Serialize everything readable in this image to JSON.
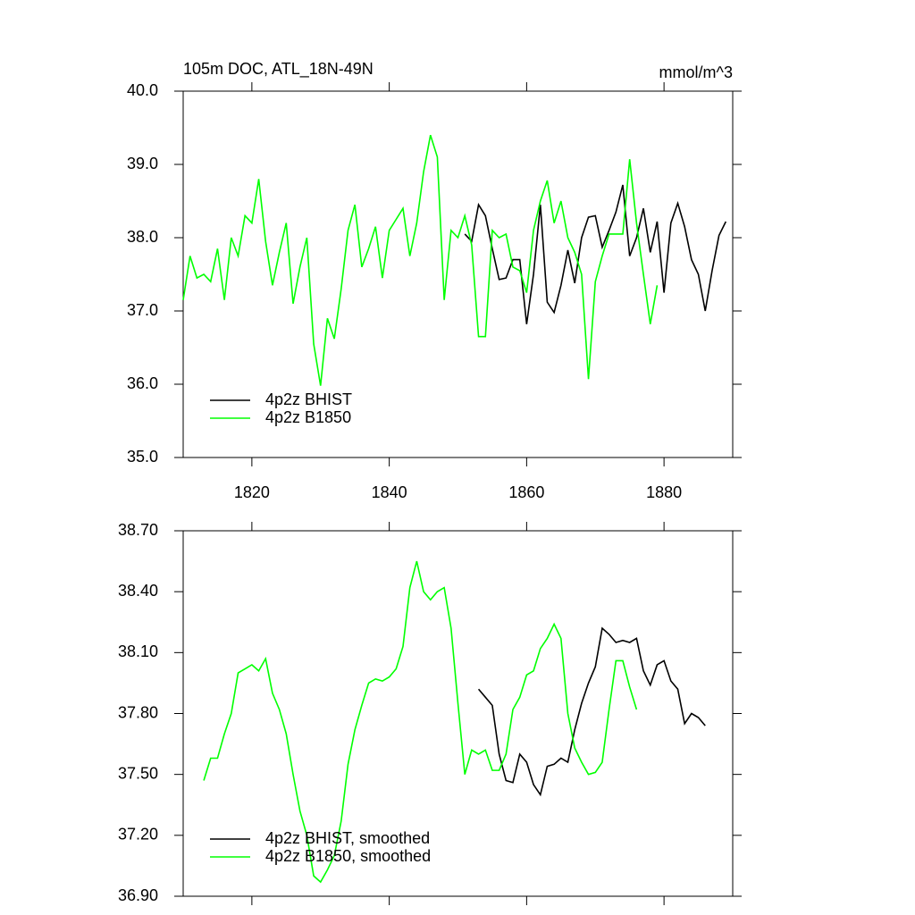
{
  "chart_data": [
    {
      "type": "line",
      "title": "105m DOC, ATL_18N-49N",
      "units": "mmol/m^3",
      "xlim": [
        1810,
        1890
      ],
      "xticks": [
        1820,
        1840,
        1860,
        1880
      ],
      "xtick_labels": true,
      "ylim": [
        35,
        40
      ],
      "yticks": [
        {
          "value": 35,
          "label": "35.0"
        },
        {
          "value": 36,
          "label": "36.0"
        },
        {
          "value": 37,
          "label": "37.0"
        },
        {
          "value": 38,
          "label": "38.0"
        },
        {
          "value": 39,
          "label": "39.0"
        },
        {
          "value": 40,
          "label": "40.0"
        }
      ],
      "legend": "lower left",
      "series": [
        {
          "name": "4p2z BHIST",
          "color": "#000000",
          "x": [
            1851,
            1852,
            1853,
            1854,
            1855,
            1856,
            1857,
            1858,
            1859,
            1860,
            1861,
            1862,
            1863,
            1864,
            1865,
            1866,
            1867,
            1868,
            1869,
            1870,
            1871,
            1872,
            1873,
            1874,
            1875,
            1876,
            1877,
            1878,
            1879,
            1880,
            1881,
            1882,
            1883,
            1884,
            1885,
            1886,
            1887,
            1888,
            1889
          ],
          "values": [
            38.05,
            37.95,
            38.45,
            38.3,
            37.85,
            37.43,
            37.45,
            37.7,
            37.7,
            36.82,
            37.5,
            38.45,
            37.12,
            36.98,
            37.35,
            37.83,
            37.38,
            38.0,
            38.28,
            38.3,
            37.87,
            38.1,
            38.35,
            38.72,
            37.75,
            38.0,
            38.4,
            37.8,
            38.22,
            37.25,
            38.2,
            38.47,
            38.15,
            37.7,
            37.5,
            37.0,
            37.55,
            38.03,
            38.22
          ]
        },
        {
          "name": "4p2z B1850",
          "color": "#00ff00",
          "x": [
            1810,
            1811,
            1812,
            1813,
            1814,
            1815,
            1816,
            1817,
            1818,
            1819,
            1820,
            1821,
            1822,
            1823,
            1824,
            1825,
            1826,
            1827,
            1828,
            1829,
            1830,
            1831,
            1832,
            1833,
            1834,
            1835,
            1836,
            1837,
            1838,
            1839,
            1840,
            1841,
            1842,
            1843,
            1844,
            1845,
            1846,
            1847,
            1848,
            1849,
            1850,
            1851,
            1852,
            1853,
            1854,
            1855,
            1856,
            1857,
            1858,
            1859,
            1860,
            1861,
            1862,
            1863,
            1864,
            1865,
            1866,
            1867,
            1868,
            1869,
            1870,
            1871,
            1872,
            1873,
            1874,
            1875,
            1876,
            1877,
            1878,
            1879
          ],
          "values": [
            37.15,
            37.75,
            37.45,
            37.5,
            37.4,
            37.85,
            37.15,
            38.0,
            37.75,
            38.3,
            38.2,
            38.8,
            37.95,
            37.35,
            37.8,
            38.2,
            37.1,
            37.6,
            38.0,
            36.55,
            35.98,
            36.9,
            36.62,
            37.3,
            38.1,
            38.45,
            37.6,
            37.85,
            38.15,
            37.45,
            38.1,
            38.25,
            38.4,
            37.75,
            38.2,
            38.9,
            39.4,
            39.1,
            37.15,
            38.1,
            38.0,
            38.3,
            37.9,
            36.65,
            36.65,
            38.1,
            38.0,
            38.05,
            37.6,
            37.55,
            37.25,
            38.1,
            38.5,
            38.78,
            38.2,
            38.5,
            38.0,
            37.8,
            37.5,
            36.07,
            37.4,
            37.75,
            38.05,
            38.05,
            38.05,
            39.07,
            38.2,
            37.5,
            36.82,
            37.35
          ]
        }
      ]
    },
    {
      "type": "line",
      "xlim": [
        1810,
        1890
      ],
      "xticks": [
        1820,
        1840,
        1860,
        1880
      ],
      "xtick_labels": false,
      "ylim": [
        36.9,
        38.7
      ],
      "yticks": [
        {
          "value": 36.9,
          "label": "36.90"
        },
        {
          "value": 37.2,
          "label": "37.20"
        },
        {
          "value": 37.5,
          "label": "37.50"
        },
        {
          "value": 37.8,
          "label": "37.80"
        },
        {
          "value": 38.1,
          "label": "38.10"
        },
        {
          "value": 38.4,
          "label": "38.40"
        },
        {
          "value": 38.7,
          "label": "38.70"
        }
      ],
      "legend": "lower left",
      "series": [
        {
          "name": "4p2z BHIST, smoothed",
          "color": "#000000",
          "x": [
            1853,
            1854,
            1855,
            1856,
            1857,
            1858,
            1859,
            1860,
            1861,
            1862,
            1863,
            1864,
            1865,
            1866,
            1867,
            1868,
            1869,
            1870,
            1871,
            1872,
            1873,
            1874,
            1875,
            1876,
            1877,
            1878,
            1879,
            1880,
            1881,
            1882,
            1883,
            1884,
            1885,
            1886
          ],
          "values": [
            37.92,
            37.88,
            37.84,
            37.6,
            37.47,
            37.46,
            37.6,
            37.56,
            37.45,
            37.4,
            37.54,
            37.55,
            37.58,
            37.56,
            37.72,
            37.85,
            37.95,
            38.03,
            38.22,
            38.19,
            38.15,
            38.16,
            38.15,
            38.17,
            38.01,
            37.94,
            38.04,
            38.06,
            37.96,
            37.92,
            37.75,
            37.8,
            37.78,
            37.74
          ]
        },
        {
          "name": "4p2z B1850, smoothed",
          "color": "#00ff00",
          "x": [
            1813,
            1814,
            1815,
            1816,
            1817,
            1818,
            1819,
            1820,
            1821,
            1822,
            1823,
            1824,
            1825,
            1826,
            1827,
            1828,
            1829,
            1830,
            1831,
            1832,
            1833,
            1834,
            1835,
            1836,
            1837,
            1838,
            1839,
            1840,
            1841,
            1842,
            1843,
            1844,
            1845,
            1846,
            1847,
            1848,
            1849,
            1850,
            1851,
            1852,
            1853,
            1854,
            1855,
            1856,
            1857,
            1858,
            1859,
            1860,
            1861,
            1862,
            1863,
            1864,
            1865,
            1866,
            1867,
            1868,
            1869,
            1870,
            1871,
            1872,
            1873,
            1874,
            1875,
            1876
          ],
          "values": [
            37.47,
            37.58,
            37.58,
            37.7,
            37.8,
            38.0,
            38.02,
            38.04,
            38.01,
            38.07,
            37.9,
            37.82,
            37.7,
            37.5,
            37.32,
            37.2,
            37.0,
            36.97,
            37.03,
            37.1,
            37.27,
            37.55,
            37.72,
            37.84,
            37.95,
            37.97,
            37.96,
            37.98,
            38.02,
            38.13,
            38.42,
            38.55,
            38.4,
            38.36,
            38.4,
            38.42,
            38.22,
            37.85,
            37.5,
            37.62,
            37.6,
            37.62,
            37.52,
            37.52,
            37.6,
            37.82,
            37.88,
            37.99,
            38.01,
            38.12,
            38.17,
            38.24,
            38.17,
            37.8,
            37.63,
            37.56,
            37.5,
            37.51,
            37.56,
            37.82,
            38.06,
            38.06,
            37.93,
            37.82
          ]
        }
      ]
    }
  ]
}
